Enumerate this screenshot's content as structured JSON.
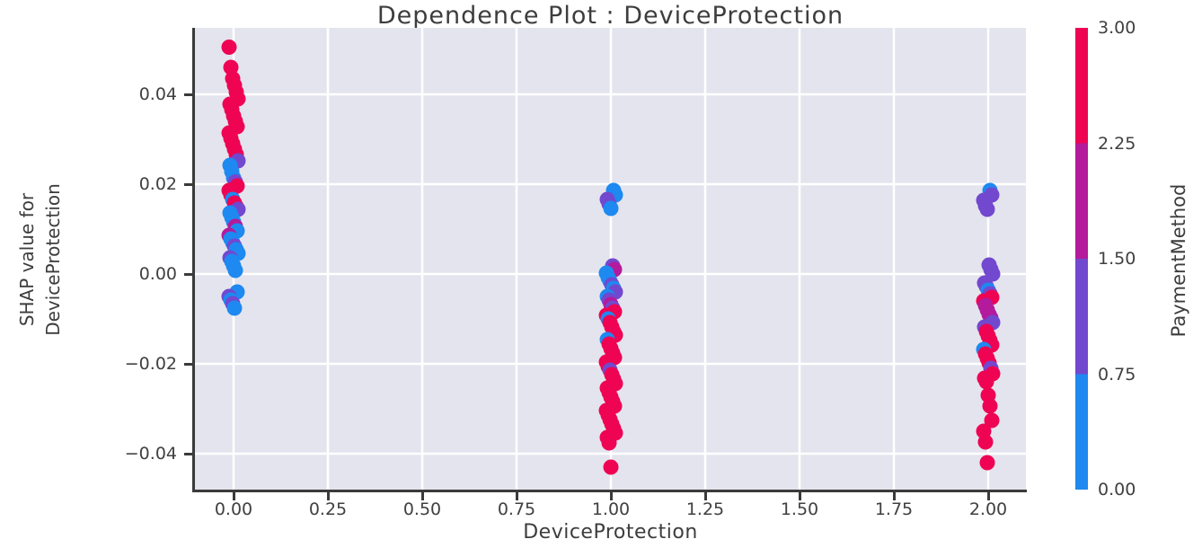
{
  "title": "Dependence Plot : DeviceProtection",
  "x_axis": {
    "label": "DeviceProtection",
    "tick_labels": [
      "0.00",
      "0.25",
      "0.50",
      "0.75",
      "1.00",
      "1.25",
      "1.50",
      "1.75",
      "2.00"
    ],
    "tick_values": [
      0,
      0.25,
      0.5,
      0.75,
      1,
      1.25,
      1.5,
      1.75,
      2
    ]
  },
  "y_axis": {
    "label_line1": "SHAP value for",
    "label_line2": "DeviceProtection",
    "tick_labels": [
      "0.04",
      "0.02",
      "0.00",
      "−0.02",
      "−0.04"
    ],
    "tick_values": [
      0.04,
      0.02,
      0,
      -0.02,
      -0.04
    ]
  },
  "colorbar": {
    "label": "PaymentMethod",
    "tick_labels": [
      "3.00",
      "2.25",
      "1.50",
      "0.75",
      "0.00"
    ],
    "tick_values": [
      3,
      2.25,
      1.5,
      0.75,
      0
    ],
    "band_colors": [
      "#ee0453",
      "#b41a9c",
      "#7248cf",
      "#1e89f0"
    ]
  },
  "colors": {
    "plot_background": "#e4e4ee",
    "grid": "#ffffff",
    "spine": "#3a3a3a",
    "text": "#3d3d3d"
  },
  "chart_data": {
    "type": "scatter",
    "title": "Dependence Plot : DeviceProtection",
    "xlabel": "DeviceProtection",
    "ylabel": "SHAP value for DeviceProtection",
    "color_feature": "PaymentMethod",
    "color_range": [
      0,
      3
    ],
    "xlim": [
      -0.1,
      2.1
    ],
    "ylim": [
      -0.049,
      0.055
    ],
    "grid": true,
    "legend_position": "right-colorbar",
    "payment_color_map": {
      "0": "#1e89f0",
      "1": "#7248cf",
      "2": "#b41a9c",
      "3": "#ee0453"
    },
    "points": [
      [
        0,
        0.0505,
        3
      ],
      [
        0,
        0.046,
        3
      ],
      [
        0,
        0.0435,
        3
      ],
      [
        0,
        0.042,
        3
      ],
      [
        0,
        0.0405,
        3
      ],
      [
        0,
        0.039,
        3
      ],
      [
        0,
        0.0378,
        3
      ],
      [
        0,
        0.0366,
        3
      ],
      [
        0,
        0.0352,
        3
      ],
      [
        0,
        0.034,
        3
      ],
      [
        0,
        0.0328,
        3
      ],
      [
        0,
        0.0314,
        3
      ],
      [
        0,
        0.0302,
        3
      ],
      [
        0,
        0.029,
        3
      ],
      [
        0,
        0.0278,
        3
      ],
      [
        0,
        0.0266,
        3
      ],
      [
        0,
        0.0252,
        1
      ],
      [
        0,
        0.0242,
        0
      ],
      [
        0,
        0.0228,
        0
      ],
      [
        0,
        0.0214,
        0
      ],
      [
        0,
        0.0205,
        1
      ],
      [
        0,
        0.0196,
        3
      ],
      [
        0,
        0.0186,
        3
      ],
      [
        0,
        0.0176,
        3
      ],
      [
        0,
        0.0166,
        0
      ],
      [
        0,
        0.0158,
        3
      ],
      [
        0,
        0.015,
        3
      ],
      [
        0,
        0.0144,
        1
      ],
      [
        0,
        0.0136,
        0
      ],
      [
        0,
        0.0126,
        0
      ],
      [
        0,
        0.0116,
        0
      ],
      [
        0,
        0.0106,
        2
      ],
      [
        0,
        0.0096,
        0
      ],
      [
        0,
        0.0086,
        2
      ],
      [
        0,
        0.0078,
        0
      ],
      [
        0,
        0.007,
        0
      ],
      [
        0,
        0.0062,
        1
      ],
      [
        0,
        0.0054,
        0
      ],
      [
        0,
        0.0046,
        0
      ],
      [
        0,
        0.0036,
        1
      ],
      [
        0,
        0.0028,
        0
      ],
      [
        0,
        0.0018,
        0
      ],
      [
        0,
        0.0008,
        0
      ],
      [
        0,
        -0.004,
        0
      ],
      [
        0,
        -0.005,
        1
      ],
      [
        0,
        -0.0058,
        0
      ],
      [
        0,
        -0.0066,
        1
      ],
      [
        0,
        -0.0076,
        0
      ],
      [
        1,
        0.0186,
        0
      ],
      [
        1,
        0.0176,
        0
      ],
      [
        1,
        0.0166,
        1
      ],
      [
        1,
        0.0156,
        1
      ],
      [
        1,
        0.0146,
        0
      ],
      [
        1,
        0.0018,
        1
      ],
      [
        1,
        0.001,
        2
      ],
      [
        1,
        0.0002,
        0
      ],
      [
        1,
        -0.0008,
        0
      ],
      [
        1,
        -0.0016,
        0
      ],
      [
        1,
        -0.0024,
        1
      ],
      [
        1,
        -0.0032,
        0
      ],
      [
        1,
        -0.004,
        1
      ],
      [
        1,
        -0.005,
        0
      ],
      [
        1,
        -0.0058,
        1
      ],
      [
        1,
        -0.0068,
        2
      ],
      [
        1,
        -0.0076,
        1
      ],
      [
        1,
        -0.0084,
        3
      ],
      [
        1,
        -0.0092,
        3
      ],
      [
        1,
        -0.01,
        0
      ],
      [
        1,
        -0.0108,
        3
      ],
      [
        1,
        -0.0118,
        3
      ],
      [
        1,
        -0.0128,
        3
      ],
      [
        1,
        -0.0136,
        3
      ],
      [
        1,
        -0.0146,
        0
      ],
      [
        1,
        -0.0156,
        3
      ],
      [
        1,
        -0.0166,
        3
      ],
      [
        1,
        -0.0176,
        3
      ],
      [
        1,
        -0.0186,
        3
      ],
      [
        1,
        -0.0196,
        3
      ],
      [
        1,
        -0.0206,
        3
      ],
      [
        1,
        -0.0214,
        1
      ],
      [
        1,
        -0.0224,
        3
      ],
      [
        1,
        -0.0234,
        3
      ],
      [
        1,
        -0.0244,
        3
      ],
      [
        1,
        -0.0254,
        3
      ],
      [
        1,
        -0.0264,
        3
      ],
      [
        1,
        -0.0274,
        3
      ],
      [
        1,
        -0.0284,
        3
      ],
      [
        1,
        -0.0294,
        3
      ],
      [
        1,
        -0.0304,
        3
      ],
      [
        1,
        -0.0314,
        3
      ],
      [
        1,
        -0.0324,
        3
      ],
      [
        1,
        -0.0334,
        3
      ],
      [
        1,
        -0.0344,
        3
      ],
      [
        1,
        -0.0354,
        3
      ],
      [
        1,
        -0.0364,
        3
      ],
      [
        1,
        -0.0376,
        3
      ],
      [
        1,
        -0.043,
        3
      ],
      [
        2,
        0.0186,
        0
      ],
      [
        2,
        0.0176,
        1
      ],
      [
        2,
        0.0164,
        1
      ],
      [
        2,
        0.0152,
        1
      ],
      [
        2,
        0.0144,
        1
      ],
      [
        2,
        0.002,
        1
      ],
      [
        2,
        0.001,
        1
      ],
      [
        2,
        0,
        1
      ],
      [
        2,
        -0.002,
        1
      ],
      [
        2,
        -0.0028,
        1
      ],
      [
        2,
        -0.0036,
        0
      ],
      [
        2,
        -0.0044,
        1
      ],
      [
        2,
        -0.0052,
        3
      ],
      [
        2,
        -0.006,
        3
      ],
      [
        2,
        -0.007,
        2
      ],
      [
        2,
        -0.008,
        2
      ],
      [
        2,
        -0.009,
        2
      ],
      [
        2,
        -0.0098,
        2
      ],
      [
        2,
        -0.0108,
        1
      ],
      [
        2,
        -0.0118,
        1
      ],
      [
        2,
        -0.0128,
        3
      ],
      [
        2,
        -0.0138,
        3
      ],
      [
        2,
        -0.0148,
        3
      ],
      [
        2,
        -0.0158,
        3
      ],
      [
        2,
        -0.0168,
        0
      ],
      [
        2,
        -0.0178,
        3
      ],
      [
        2,
        -0.0188,
        3
      ],
      [
        2,
        -0.0198,
        3
      ],
      [
        2,
        -0.021,
        1
      ],
      [
        2,
        -0.0222,
        3
      ],
      [
        2,
        -0.0232,
        3
      ],
      [
        2,
        -0.024,
        3
      ],
      [
        2,
        -0.027,
        3
      ],
      [
        2,
        -0.0294,
        3
      ],
      [
        2,
        -0.0326,
        3
      ],
      [
        2,
        -0.035,
        3
      ],
      [
        2,
        -0.0374,
        3
      ],
      [
        2,
        -0.042,
        3
      ]
    ]
  }
}
